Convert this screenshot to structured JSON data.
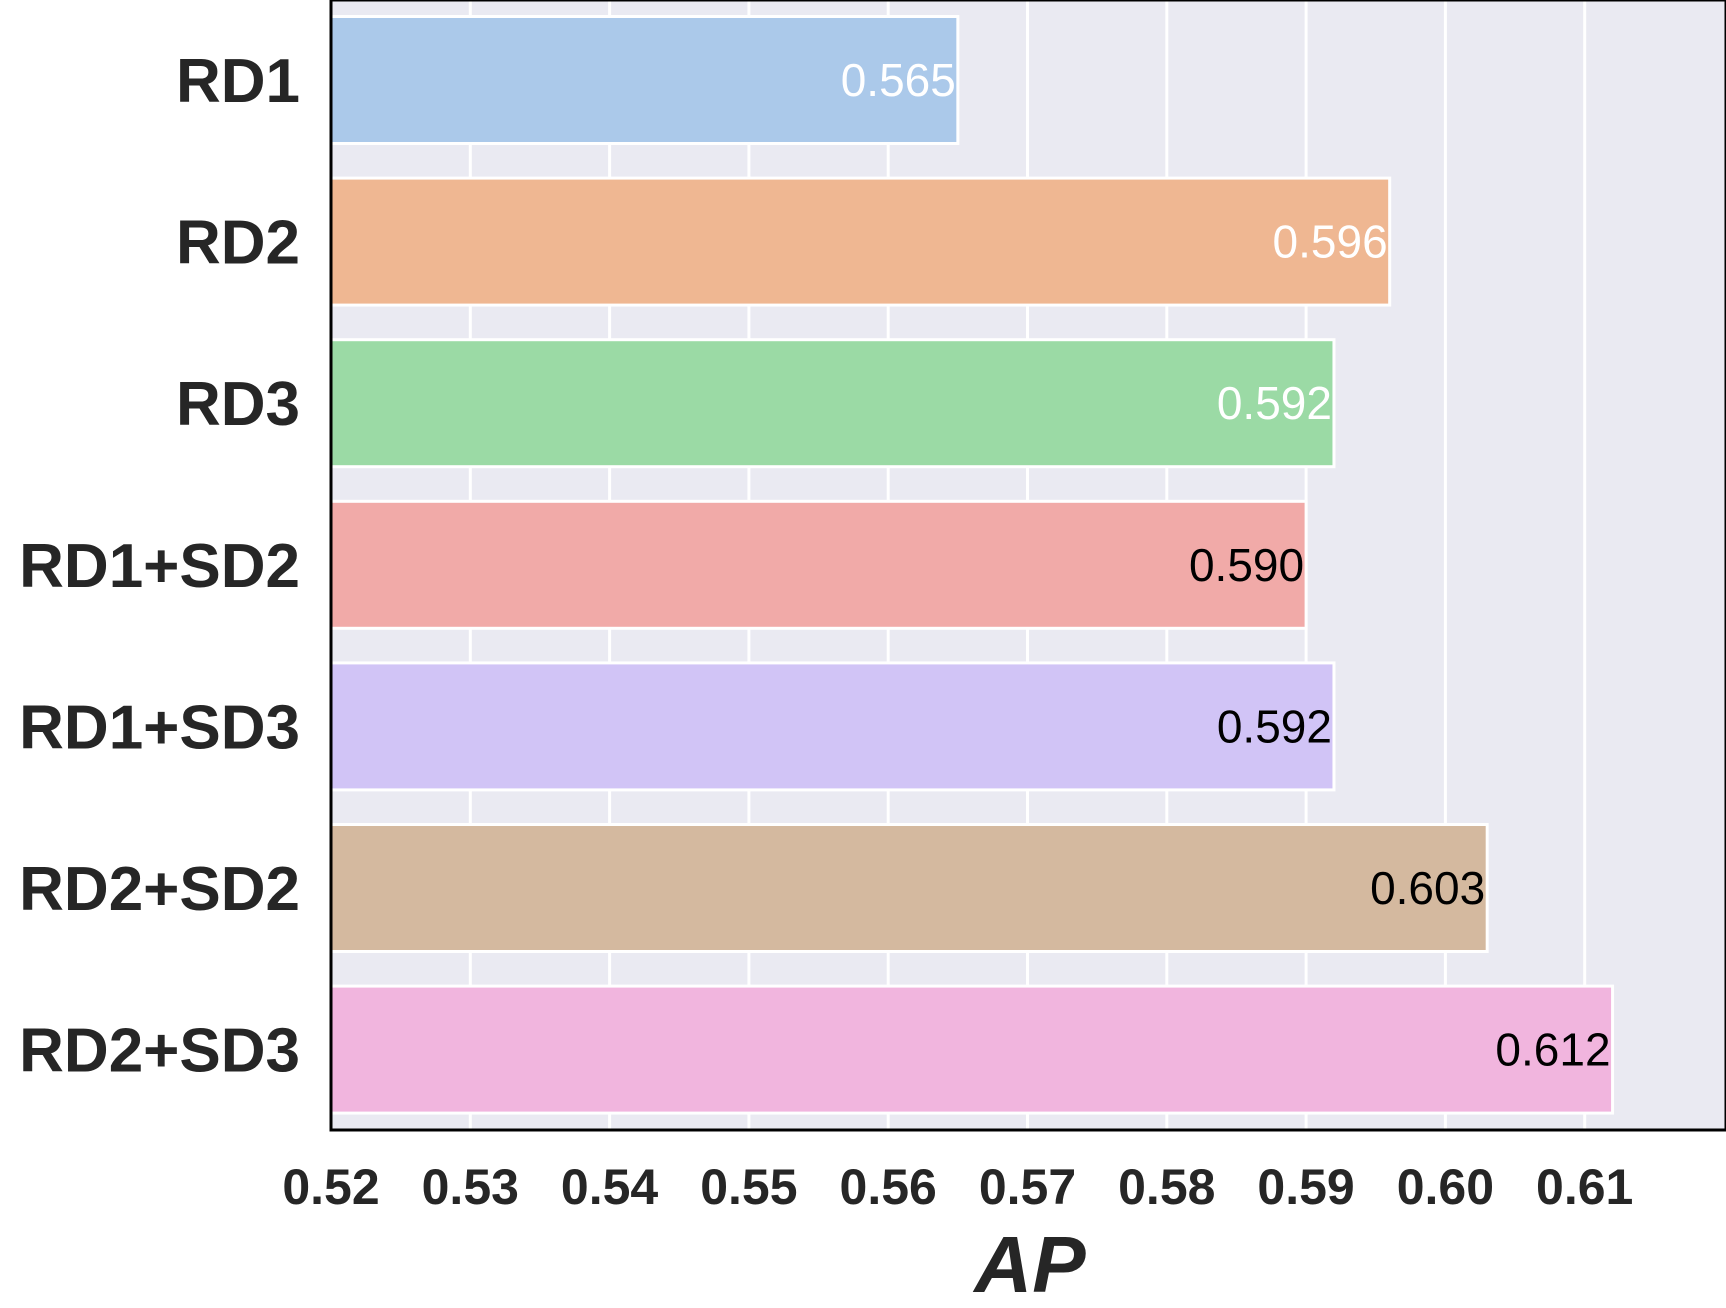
{
  "chart_data": {
    "type": "bar",
    "orientation": "horizontal",
    "title": "",
    "xlabel": "AP",
    "ylabel": "",
    "xlim": [
      0.52,
      0.62
    ],
    "x_ticks": [
      "0.52",
      "0.53",
      "0.54",
      "0.55",
      "0.56",
      "0.57",
      "0.58",
      "0.59",
      "0.60",
      "0.61"
    ],
    "grid": true,
    "categories": [
      "RD1",
      "RD2",
      "RD3",
      "RD1+SD2",
      "RD1+SD3",
      "RD2+SD2",
      "RD2+SD3"
    ],
    "values": [
      0.565,
      0.596,
      0.592,
      0.59,
      0.592,
      0.603,
      0.612
    ],
    "data_labels": [
      "0.565",
      "0.596",
      "0.592",
      "0.590",
      "0.592",
      "0.603",
      "0.612"
    ],
    "bar_colors": [
      "#abc9ea",
      "#efb792",
      "#9bdaa5",
      "#f1aaa8",
      "#d1c4f6",
      "#d4b99f",
      "#f1b5de"
    ],
    "label_colors": [
      "#ffffff",
      "#ffffff",
      "#ffffff",
      "#000000",
      "#000000",
      "#000000",
      "#000000"
    ],
    "background_color": "#eaeaf2",
    "grid_color": "#ffffff"
  }
}
